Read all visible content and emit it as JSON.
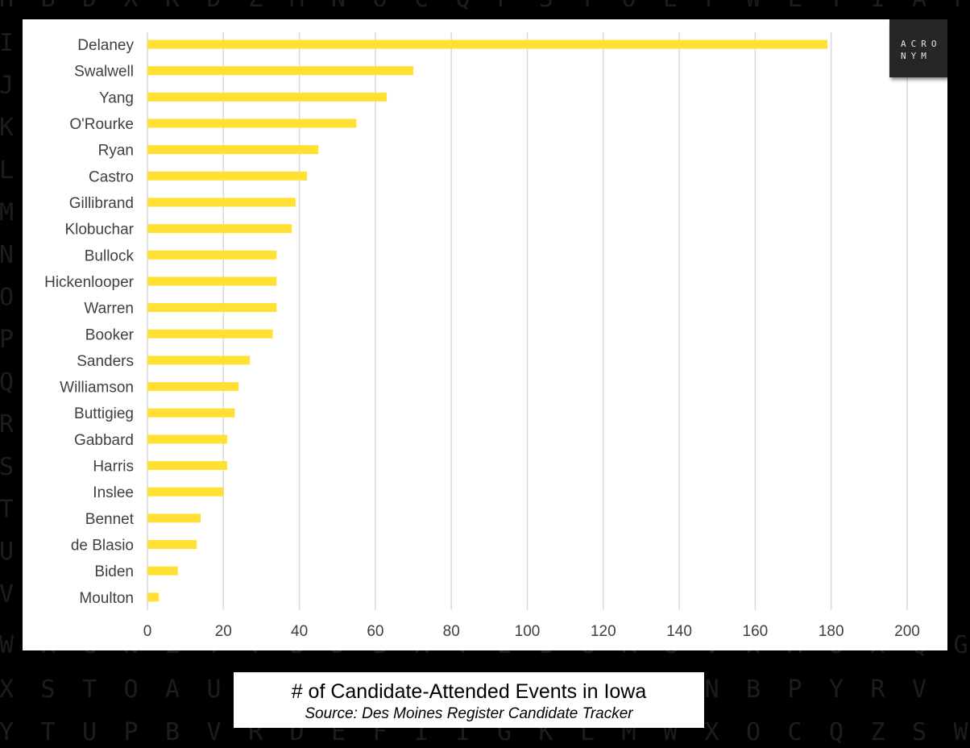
{
  "background_letters": [
    "HBDXKDZMNOCQPSTOEFWLYIAF",
    "I",
    "J",
    "K",
    "L",
    "M",
    "N",
    "O",
    "P",
    "Q",
    "R",
    "S",
    "T",
    "U",
    "V",
    "WRGNZTYBDBRYEIGRGVHAUXQG",
    "XSTOAUNBPYRV",
    "YTUPBVRDEFIIGKLMWXOCQZSW"
  ],
  "logo": {
    "line1": "ACRO",
    "line2": "NYM"
  },
  "caption": {
    "title": "# of Candidate-Attended Events in Iowa",
    "source": "Source: Des Moines Register Candidate Tracker"
  },
  "chart_data": {
    "type": "bar",
    "orientation": "horizontal",
    "categories": [
      "Delaney",
      "Swalwell",
      "Yang",
      "O'Rourke",
      "Ryan",
      "Castro",
      "Gillibrand",
      "Klobuchar",
      "Bullock",
      "Hickenlooper",
      "Warren",
      "Booker",
      "Sanders",
      "Williamson",
      "Buttigieg",
      "Gabbard",
      "Harris",
      "Inslee",
      "Bennet",
      "de Blasio",
      "Biden",
      "Moulton"
    ],
    "values": [
      179,
      70,
      63,
      55,
      45,
      42,
      39,
      38,
      34,
      34,
      34,
      33,
      27,
      24,
      23,
      21,
      21,
      20,
      14,
      13,
      8,
      3
    ],
    "xlim": [
      0,
      200
    ],
    "xticks": [
      0,
      20,
      40,
      60,
      80,
      100,
      120,
      140,
      160,
      180,
      200
    ],
    "grid": "vertical",
    "legend": "none",
    "bar_color": "#ffe033"
  }
}
